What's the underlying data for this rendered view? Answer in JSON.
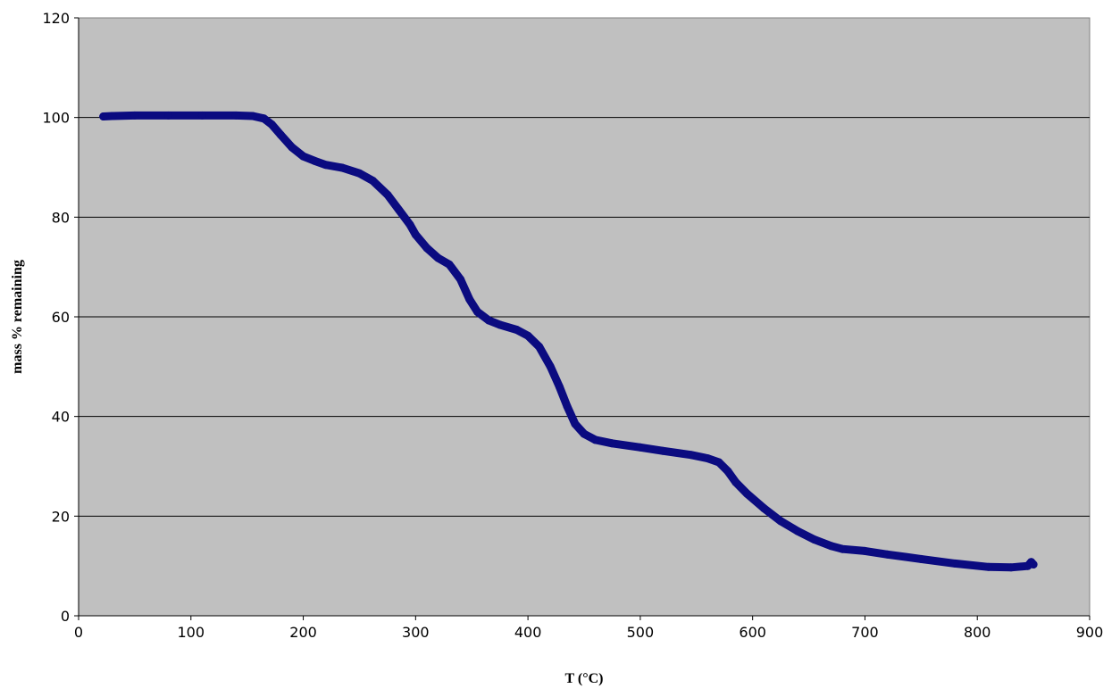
{
  "chart_data": {
    "type": "line",
    "title": "",
    "xlabel": "T (°C)",
    "ylabel": "mass % remaining",
    "xlim": [
      0,
      900
    ],
    "ylim": [
      0,
      120
    ],
    "xticks": [
      0,
      100,
      200,
      300,
      400,
      500,
      600,
      700,
      800,
      900
    ],
    "yticks": [
      0,
      20,
      40,
      60,
      80,
      100,
      120
    ],
    "xtick_labels": [
      "0",
      "100",
      "200",
      "300",
      "400",
      "500",
      "600",
      "700",
      "800",
      "900"
    ],
    "ytick_labels": [
      "0",
      "20",
      "40",
      "60",
      "80",
      "100",
      "120"
    ],
    "grid": "horizontal major gridlines",
    "legend": "none",
    "colors": {
      "plot_background": "#c0c0c0",
      "series": "#0b0b80",
      "grid": "#000000"
    },
    "series": [
      {
        "x": [
          22,
          30,
          50,
          80,
          110,
          140,
          155,
          165,
          172,
          180,
          190,
          200,
          210,
          220,
          235,
          250,
          262,
          275,
          285,
          295,
          300,
          310,
          320,
          330,
          340,
          348,
          355,
          365,
          375,
          390,
          400,
          410,
          420,
          428,
          435,
          442,
          450,
          460,
          475,
          500,
          520,
          545,
          560,
          570,
          578,
          585,
          595,
          610,
          625,
          640,
          655,
          670,
          680,
          700,
          720,
          750,
          780,
          810,
          830,
          845,
          848,
          850
        ],
        "y": [
          100.2,
          100.3,
          100.4,
          100.4,
          100.4,
          100.4,
          100.3,
          99.8,
          98.6,
          96.5,
          94.0,
          92.2,
          91.3,
          90.5,
          89.9,
          88.8,
          87.3,
          84.5,
          81.5,
          78.5,
          76.5,
          73.8,
          71.8,
          70.5,
          67.5,
          63.5,
          61.0,
          59.3,
          58.4,
          57.4,
          56.2,
          54.0,
          50.0,
          46.0,
          42.0,
          38.5,
          36.5,
          35.3,
          34.6,
          33.8,
          33.1,
          32.3,
          31.6,
          30.8,
          29.0,
          26.8,
          24.5,
          21.6,
          19.0,
          17.0,
          15.3,
          14.0,
          13.4,
          13.0,
          12.3,
          11.4,
          10.5,
          9.8,
          9.7,
          10.0,
          10.8,
          10.3
        ]
      }
    ]
  }
}
